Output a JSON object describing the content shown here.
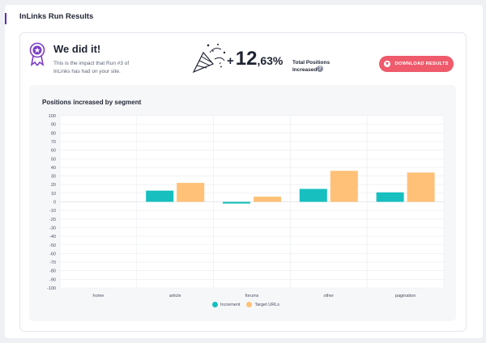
{
  "panel": {
    "title": "InLinks Run Results"
  },
  "hero": {
    "title": "We did it!",
    "subtitle": "This is the impact that Run #3 of InLinks has had on your site.",
    "medal_icon": "award-medal-icon",
    "party_icon": "party-popper-icon"
  },
  "stat": {
    "plus": "+",
    "integer": "12",
    "decimal": ",63%",
    "label": "Total Positions Increased",
    "help": "?"
  },
  "download_button": {
    "label": "DOWNLOAD RESULTS",
    "icon": "download-icon",
    "color": "#ef5b6c"
  },
  "chart_data": {
    "type": "bar",
    "title": "Positions increased by segment",
    "xlabel": "",
    "ylabel": "",
    "categories": [
      "home",
      "article",
      "forums",
      "other",
      "pagination"
    ],
    "series": [
      {
        "name": "Increment",
        "color": "#17bfbf",
        "values": [
          0,
          13,
          -2,
          15,
          11
        ]
      },
      {
        "name": "Target URLs",
        "color": "#ffc178",
        "values": [
          0,
          22,
          6,
          36,
          34
        ]
      }
    ],
    "ylim": [
      -100,
      100
    ],
    "yticks": [
      100,
      90,
      80,
      70,
      60,
      50,
      40,
      30,
      20,
      10,
      0,
      -10,
      -20,
      -30,
      -40,
      -50,
      -60,
      -70,
      -80,
      -90,
      -100
    ],
    "grid": true,
    "legend_position": "bottom"
  }
}
